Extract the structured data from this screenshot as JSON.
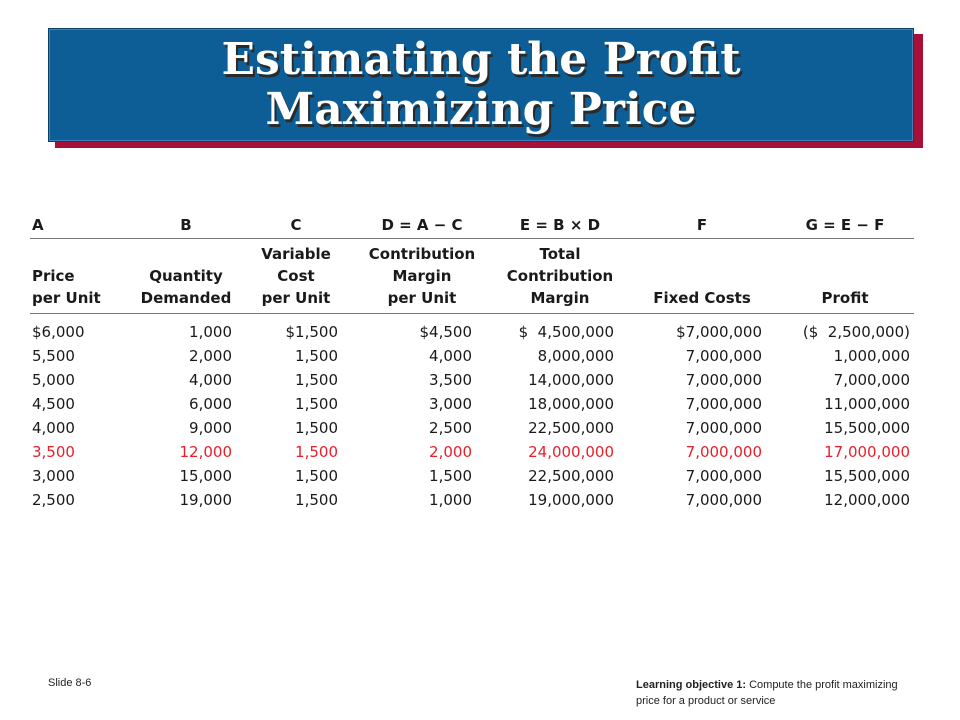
{
  "title": "Estimating the Profit\nMaximizing Price",
  "table": {
    "letters": [
      "A",
      "B",
      "C",
      "D = A − C",
      "E = B × D",
      "F",
      "G = E − F"
    ],
    "headers": [
      "Price\nper Unit",
      "Quantity\nDemanded",
      "Variable\nCost\nper Unit",
      "Contribution\nMargin\nper Unit",
      "Total\nContribution\nMargin",
      "Fixed Costs",
      "Profit"
    ],
    "rows": [
      [
        "$6,000",
        "1,000",
        "$1,500",
        "$4,500",
        "$  4,500,000",
        "$7,000,000",
        "($  2,500,000)"
      ],
      [
        "5,500",
        "2,000",
        "1,500",
        "4,000",
        "8,000,000",
        "7,000,000",
        "1,000,000"
      ],
      [
        "5,000",
        "4,000",
        "1,500",
        "3,500",
        "14,000,000",
        "7,000,000",
        "7,000,000"
      ],
      [
        "4,500",
        "6,000",
        "1,500",
        "3,000",
        "18,000,000",
        "7,000,000",
        "11,000,000"
      ],
      [
        "4,000",
        "9,000",
        "1,500",
        "2,500",
        "22,500,000",
        "7,000,000",
        "15,500,000"
      ],
      [
        "3,500",
        "12,000",
        "1,500",
        "2,000",
        "24,000,000",
        "7,000,000",
        "17,000,000"
      ],
      [
        "3,000",
        "15,000",
        "1,500",
        "1,500",
        "22,500,000",
        "7,000,000",
        "15,500,000"
      ],
      [
        "2,500",
        "19,000",
        "1,500",
        "1,000",
        "19,000,000",
        "7,000,000",
        "12,000,000"
      ]
    ],
    "highlight_row": 5,
    "highlight_color": "#e8202a"
  },
  "footer": {
    "slide_number": "Slide 8-6",
    "objective_label": "Learning objective 1:",
    "objective_text": "Compute the profit maximizing price for a product or service"
  },
  "colors": {
    "banner": "#0d5d96",
    "banner_shadow": "#a8103a"
  }
}
